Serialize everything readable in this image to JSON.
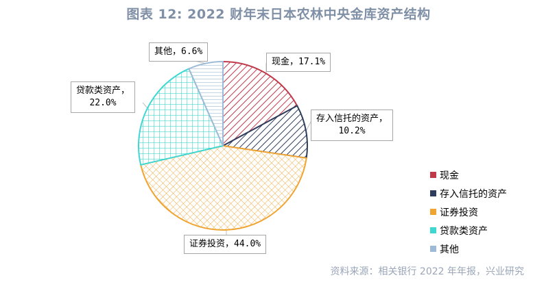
{
  "title": "图表 12: 2022 财年末日本农林中央金库资产结构",
  "source": "资料来源：相关银行 2022 年年报，兴业研究",
  "chart_data": {
    "type": "pie",
    "unit": "%",
    "slices": [
      {
        "name": "现金",
        "value": 17.1,
        "color": "#c0394b",
        "pattern": "diagonal",
        "label_l1": "现金，17.1%",
        "label_l2": ""
      },
      {
        "name": "存入信托的资产",
        "value": 10.2,
        "color": "#2e3d5c",
        "pattern": "diagonal",
        "label_l1": "存入信托的资产，",
        "label_l2": "10.2%"
      },
      {
        "name": "证券投资",
        "value": 44.0,
        "color": "#f0a431",
        "pattern": "crosshatch",
        "label_l1": "证券投资，44.0%",
        "label_l2": ""
      },
      {
        "name": "贷款类资产",
        "value": 22.0,
        "color": "#3fd7d2",
        "pattern": "grid",
        "label_l1": "贷款类资产，",
        "label_l2": "22.0%"
      },
      {
        "name": "其他",
        "value": 6.6,
        "color": "#9dbbd6",
        "pattern": "horizontal",
        "label_l1": "其他，6.6%",
        "label_l2": ""
      }
    ],
    "legend": {
      "position": "right"
    }
  }
}
